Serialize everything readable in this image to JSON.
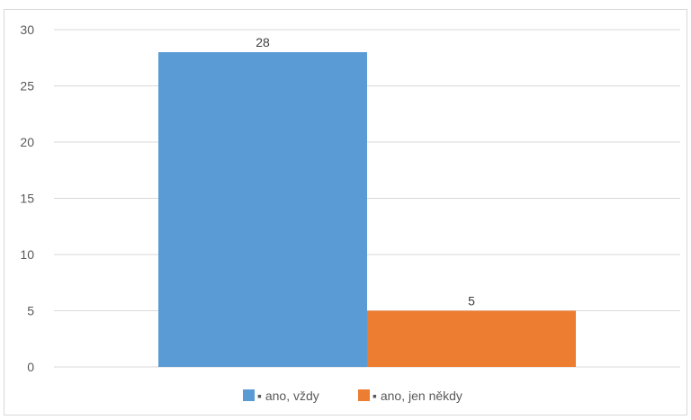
{
  "chart_data": {
    "type": "bar",
    "title": "",
    "xlabel": "",
    "ylabel": "",
    "ylim": [
      0,
      30
    ],
    "yticks": [
      0,
      5,
      10,
      15,
      20,
      25,
      30
    ],
    "grid": true,
    "legend_position": "bottom",
    "categories": [
      "▪ ano, vždy",
      "▪ ano, jen někdy"
    ],
    "series": [
      {
        "name": "▪ ano, vždy",
        "value": 28,
        "color": "#5b9bd5"
      },
      {
        "name": "▪ ano, jen někdy",
        "value": 5,
        "color": "#ed7d31"
      }
    ]
  }
}
